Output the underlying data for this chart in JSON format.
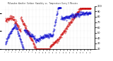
{
  "title": "Milwaukee Weather Outdoor Humidity vs. Temperature Every 5 Minutes",
  "background_color": "#ffffff",
  "plot_bg_color": "#ffffff",
  "red_color": "#cc0000",
  "blue_color": "#0000cc",
  "grid_color": "#bbbbbb",
  "ylim_temp": [
    25,
    85
  ],
  "ylim_hum": [
    20,
    100
  ],
  "yticks_right": [
    20,
    30,
    40,
    50,
    60,
    70,
    80,
    90,
    100
  ],
  "figsize": [
    1.6,
    0.87
  ],
  "dpi": 100,
  "n_points": 400,
  "seed": 7
}
